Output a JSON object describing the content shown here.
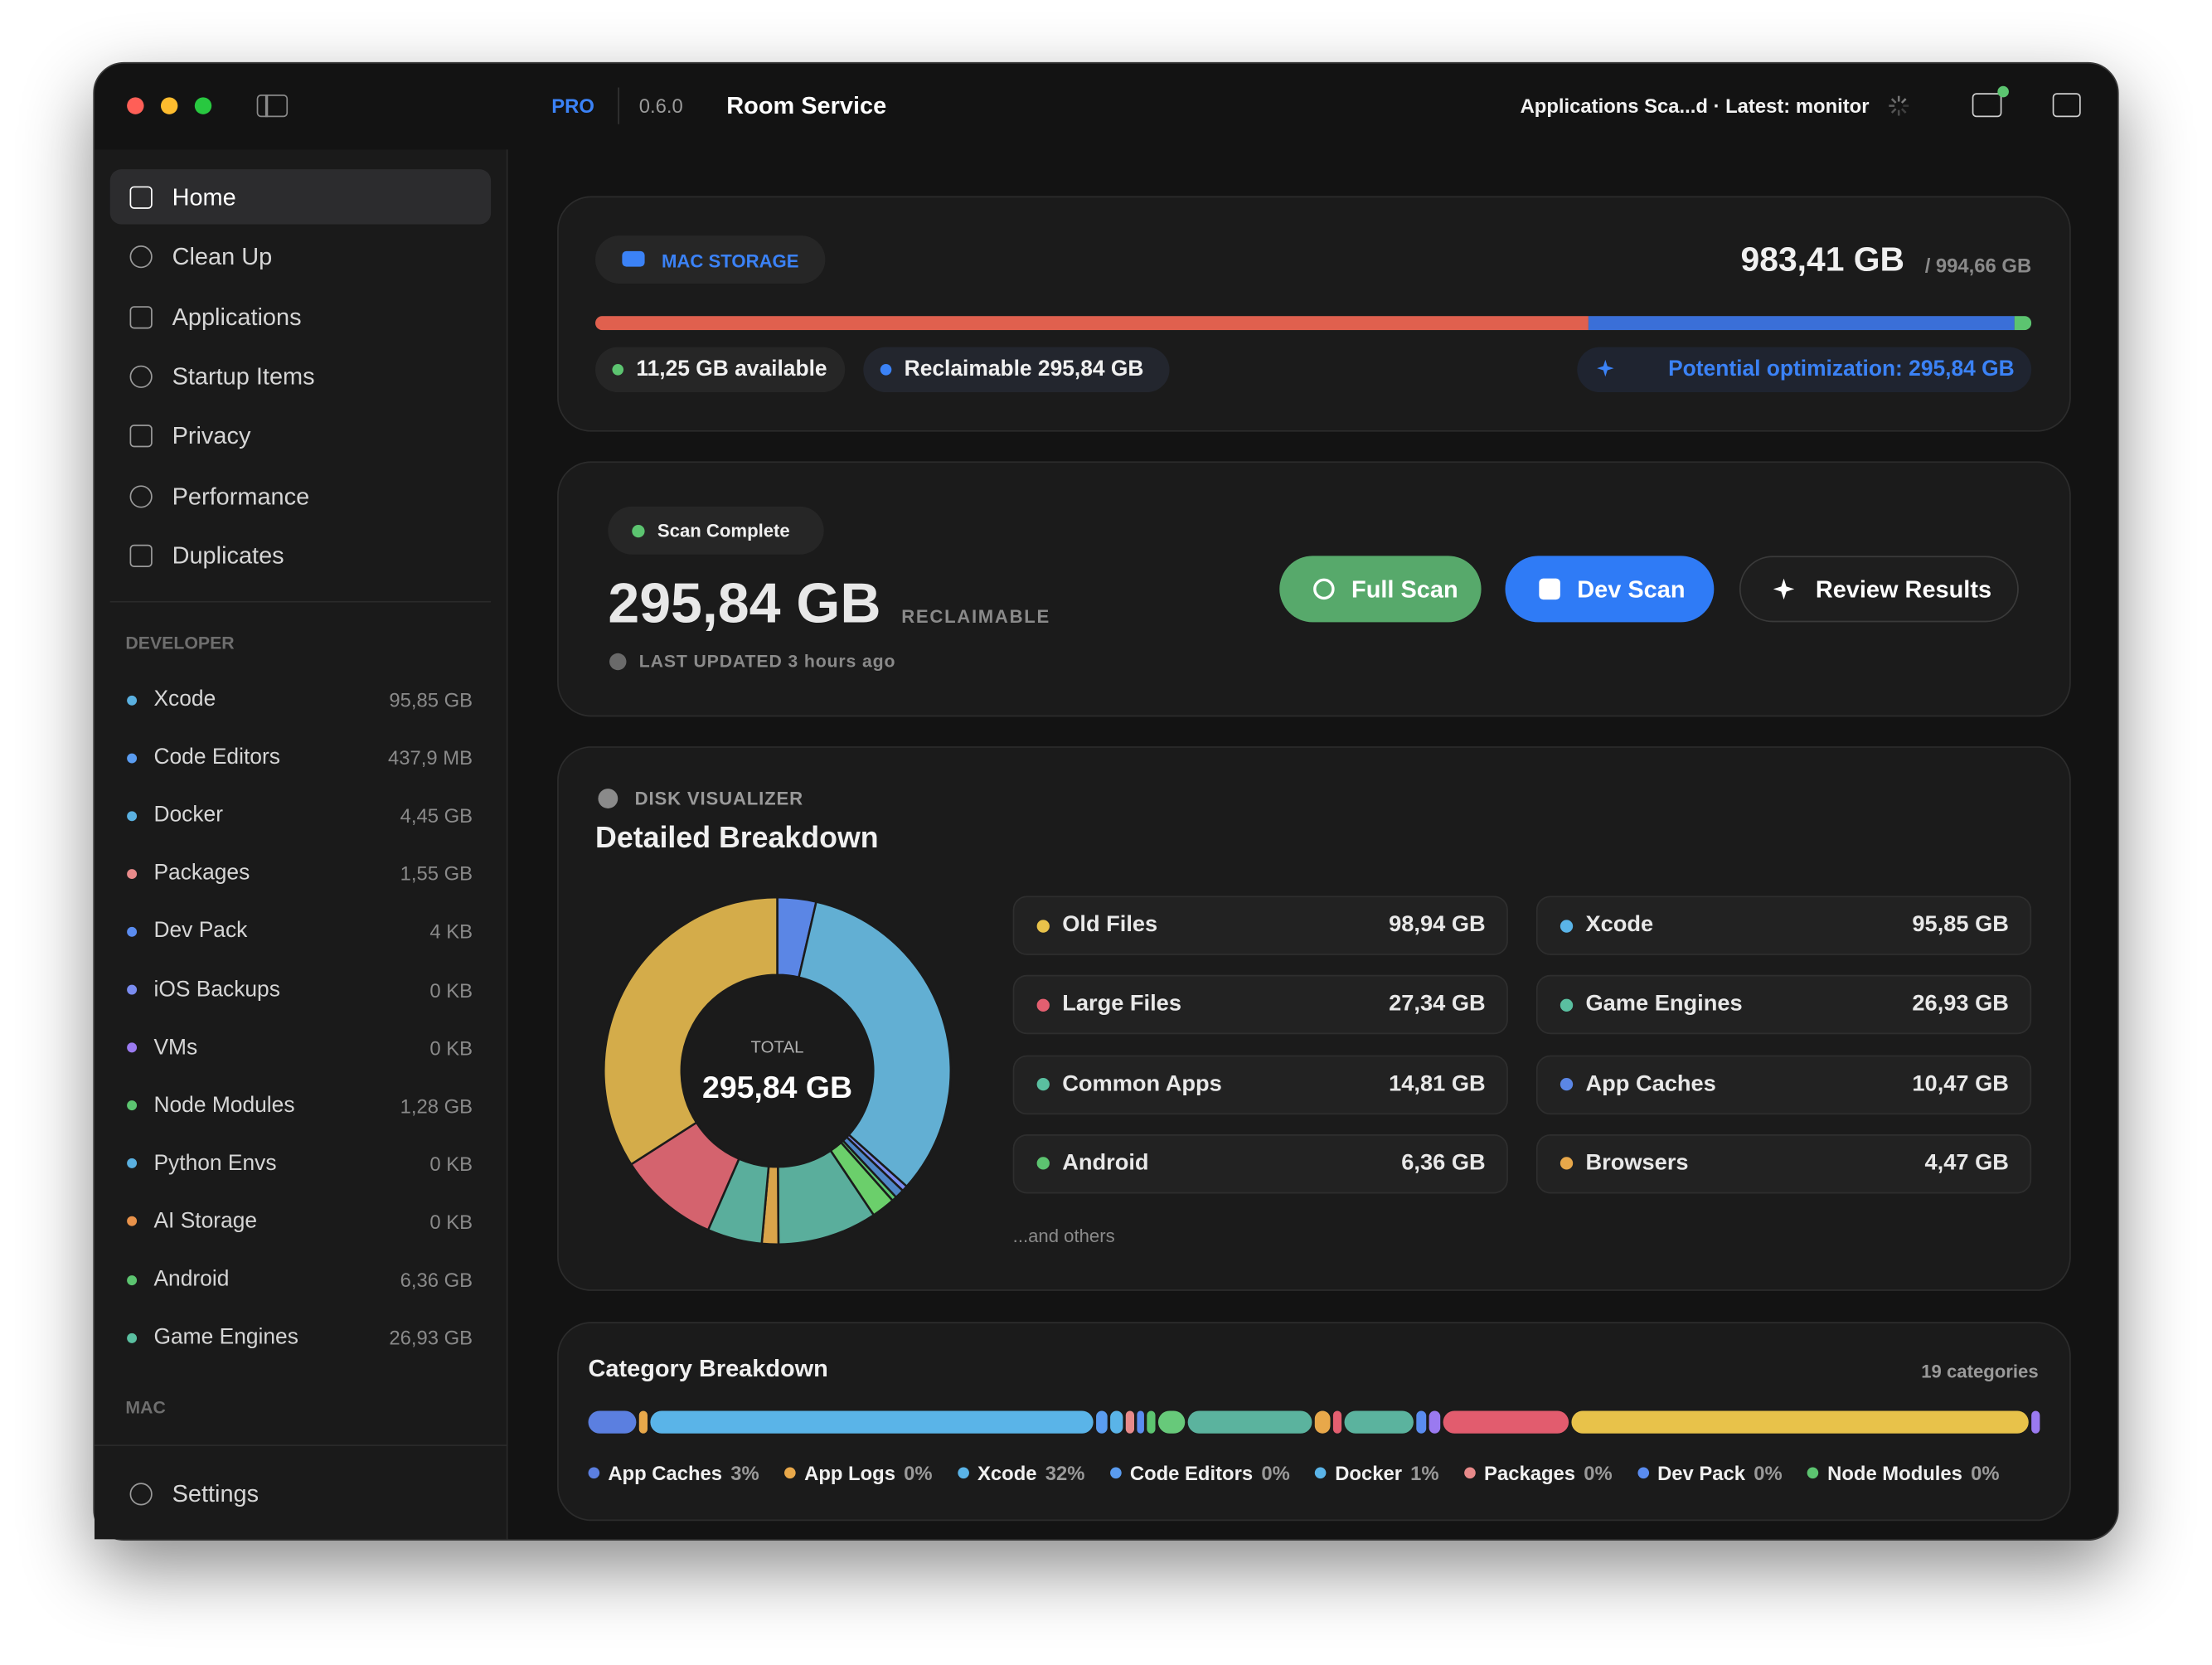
{
  "window": {
    "badge": "PRO",
    "version": "0.6.0",
    "title": "Room Service",
    "status": "Applications Sca...d · Latest: monitor"
  },
  "sidebar": {
    "nav": [
      {
        "label": "Home",
        "selected": true
      },
      {
        "label": "Clean Up",
        "selected": false
      },
      {
        "label": "Applications",
        "selected": false
      },
      {
        "label": "Startup Items",
        "selected": false
      },
      {
        "label": "Privacy",
        "selected": false
      },
      {
        "label": "Performance",
        "selected": false
      },
      {
        "label": "Duplicates",
        "selected": false
      }
    ],
    "developer_heading": "DEVELOPER",
    "developer_items": [
      {
        "label": "Xcode",
        "size": "95,85 GB",
        "color": "#5ab0e0"
      },
      {
        "label": "Code Editors",
        "size": "437,9 MB",
        "color": "#5a9cf0"
      },
      {
        "label": "Docker",
        "size": "4,45 GB",
        "color": "#5ab0e0"
      },
      {
        "label": "Packages",
        "size": "1,55 GB",
        "color": "#e88a8a"
      },
      {
        "label": "Dev Pack",
        "size": "4 KB",
        "color": "#5a8cf0"
      },
      {
        "label": "iOS Backups",
        "size": "0 KB",
        "color": "#7a8cf0"
      },
      {
        "label": "VMs",
        "size": "0 KB",
        "color": "#9a7af0"
      },
      {
        "label": "Node Modules",
        "size": "1,28 GB",
        "color": "#5cc470"
      },
      {
        "label": "Python Envs",
        "size": "0 KB",
        "color": "#5ab0e0"
      },
      {
        "label": "AI Storage",
        "size": "0 KB",
        "color": "#e8924a"
      },
      {
        "label": "Android",
        "size": "6,36 GB",
        "color": "#5cc470"
      },
      {
        "label": "Game Engines",
        "size": "26,93 GB",
        "color": "#5abfa0"
      }
    ],
    "mac_heading": "MAC",
    "settings": "Settings"
  },
  "storage": {
    "badge": "MAC STORAGE",
    "used": "983,41 GB",
    "total": "/ 994,66 GB",
    "bar": [
      {
        "value": 687.57,
        "color": "#e0604e"
      },
      {
        "value": 295.84,
        "color": "#3a6fd8"
      },
      {
        "value": 11.25,
        "color": "#5cc470"
      }
    ],
    "available": "11,25 GB available",
    "reclaimable": "Reclaimable 295,84 GB",
    "optimization": "Potential optimization: 295,84 GB"
  },
  "scan": {
    "status": "Scan Complete",
    "amount": "295,84 GB",
    "amount_caption": "RECLAIMABLE",
    "updated": "LAST UPDATED 3 hours ago",
    "buttons": [
      "Full Scan",
      "Dev Scan",
      "Review Results"
    ]
  },
  "visualizer": {
    "eyebrow": "DISK VISUALIZER",
    "title": "Detailed Breakdown",
    "total_caption": "TOTAL",
    "total": "295,84 GB",
    "segments": [
      {
        "value": 10.47,
        "color": "#5b86e5"
      },
      {
        "value": 95.85,
        "color": "#62afd3"
      },
      {
        "value": 1.55,
        "color": "#7a8cf0"
      },
      {
        "value": 2.5,
        "color": "#4f86c6"
      },
      {
        "value": 1.28,
        "color": "#5cc470"
      },
      {
        "value": 6.36,
        "color": "#6bcf6b"
      },
      {
        "value": 26.93,
        "color": "#5aae9c"
      },
      {
        "value": 4.47,
        "color": "#d9a44a"
      },
      {
        "value": 14.81,
        "color": "#5aae9c"
      },
      {
        "value": 27.34,
        "color": "#d4636e"
      },
      {
        "value": 98.94,
        "color": "#d4ac4a"
      }
    ],
    "legend": [
      {
        "name": "Old Files",
        "size": "98,94 GB",
        "color": "#e8c24a"
      },
      {
        "name": "Xcode",
        "size": "95,85 GB",
        "color": "#5ab4e8"
      },
      {
        "name": "Large Files",
        "size": "27,34 GB",
        "color": "#e35f70"
      },
      {
        "name": "Game Engines",
        "size": "26,93 GB",
        "color": "#5abfa0"
      },
      {
        "name": "Common Apps",
        "size": "14,81 GB",
        "color": "#5abfa0"
      },
      {
        "name": "App Caches",
        "size": "10,47 GB",
        "color": "#5b86e5"
      },
      {
        "name": "Android",
        "size": "6,36 GB",
        "color": "#5cc470"
      },
      {
        "name": "Browsers",
        "size": "4,47 GB",
        "color": "#e8a84a"
      }
    ],
    "more": "...and others"
  },
  "categories": {
    "title": "Category Breakdown",
    "count": "19 categories",
    "bar": [
      {
        "value": 10.47,
        "color": "#5b7fe0"
      },
      {
        "value": 1.7,
        "color": "#e8a84a"
      },
      {
        "value": 95.85,
        "color": "#5ab4e8"
      },
      {
        "value": 2.3,
        "color": "#5a9cf0"
      },
      {
        "value": 2.9,
        "color": "#5ab4e8"
      },
      {
        "value": 1.7,
        "color": "#e88a8a"
      },
      {
        "value": 1.7,
        "color": "#5a8cf0"
      },
      {
        "value": 1.7,
        "color": "#5cc470"
      },
      {
        "value": 5.8,
        "color": "#67c97a"
      },
      {
        "value": 26.93,
        "color": "#5bb39e"
      },
      {
        "value": 3.5,
        "color": "#e8a84a"
      },
      {
        "value": 1.7,
        "color": "#e35f70"
      },
      {
        "value": 14.81,
        "color": "#5bb39e"
      },
      {
        "value": 2.3,
        "color": "#5a8cf0"
      },
      {
        "value": 2.3,
        "color": "#9a7af0"
      },
      {
        "value": 27.34,
        "color": "#e25c6e"
      },
      {
        "value": 98.94,
        "color": "#e8c24a"
      },
      {
        "value": 1.7,
        "color": "#9a7af0"
      }
    ],
    "legend": [
      {
        "name": "App Caches",
        "pct": "3%",
        "color": "#5b7fe0"
      },
      {
        "name": "App Logs",
        "pct": "0%",
        "color": "#e8a84a"
      },
      {
        "name": "Xcode",
        "pct": "32%",
        "color": "#5ab4e8"
      },
      {
        "name": "Code Editors",
        "pct": "0%",
        "color": "#5a9cf0"
      },
      {
        "name": "Docker",
        "pct": "1%",
        "color": "#5ab4e8"
      },
      {
        "name": "Packages",
        "pct": "0%",
        "color": "#e88a8a"
      },
      {
        "name": "Dev Pack",
        "pct": "0%",
        "color": "#5a8cf0"
      },
      {
        "name": "Node Modules",
        "pct": "0%",
        "color": "#5cc470"
      }
    ]
  }
}
